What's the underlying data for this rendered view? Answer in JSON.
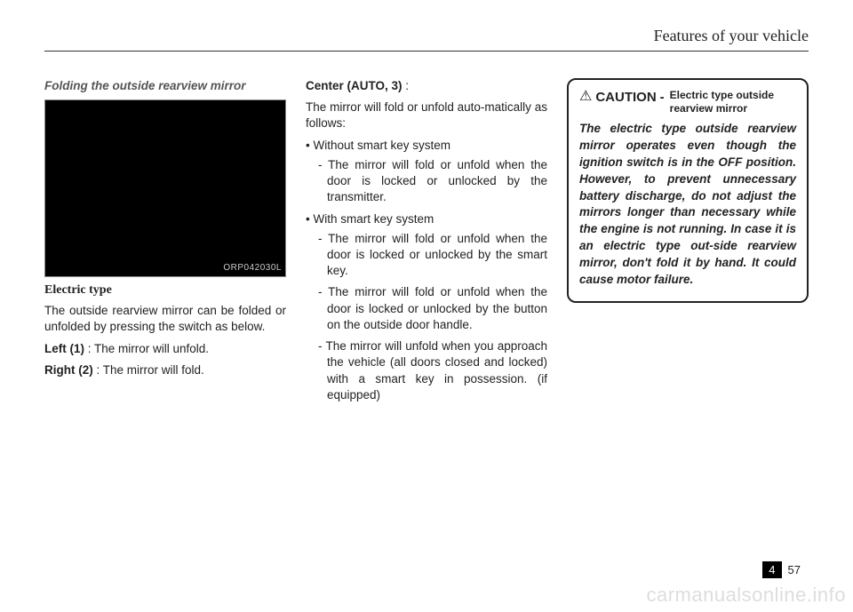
{
  "header": {
    "title": "Features of your vehicle"
  },
  "col1": {
    "section_title": "Folding the outside rearview mirror",
    "figure_caption": "ORP042030L",
    "sub_heading": "Electric type",
    "para1": "The outside rearview mirror can be folded or unfolded by pressing the switch as below.",
    "left_label": "Left (1)",
    "left_text": " : The mirror will unfold.",
    "right_label": "Right (2)",
    "right_text": " : The mirror will fold."
  },
  "col2": {
    "center_label": "Center (AUTO, 3)",
    "center_suffix": " :",
    "intro": "The mirror will fold or unfold auto-matically as follows:",
    "b1": "Without smart key system",
    "d1": "The mirror will fold or unfold when the door is locked or unlocked by the transmitter.",
    "b2": "With smart key system",
    "d2": "The mirror will fold or unfold when the door is locked or unlocked by the smart key.",
    "d3": "The mirror will fold or unfold when the door is locked or unlocked by the button on the outside door handle.",
    "d4": "The mirror will unfold when you approach the vehicle (all doors closed and locked) with a smart key in possession. (if equipped)"
  },
  "col3": {
    "caution_word": "CAUTION",
    "caution_dash": " - ",
    "caution_sub": "Electric type outside rearview mirror",
    "caution_body": "The electric type outside rearview mirror operates even though the ignition switch is in the OFF position. However, to prevent unnecessary battery discharge, do not adjust the mirrors longer than necessary while the engine is not running. In case it is an electric type out-side rearview mirror, don't fold it by hand. It could cause motor failure."
  },
  "footer": {
    "chapter": "4",
    "page": "57",
    "watermark": "carmanualsonline.info"
  }
}
